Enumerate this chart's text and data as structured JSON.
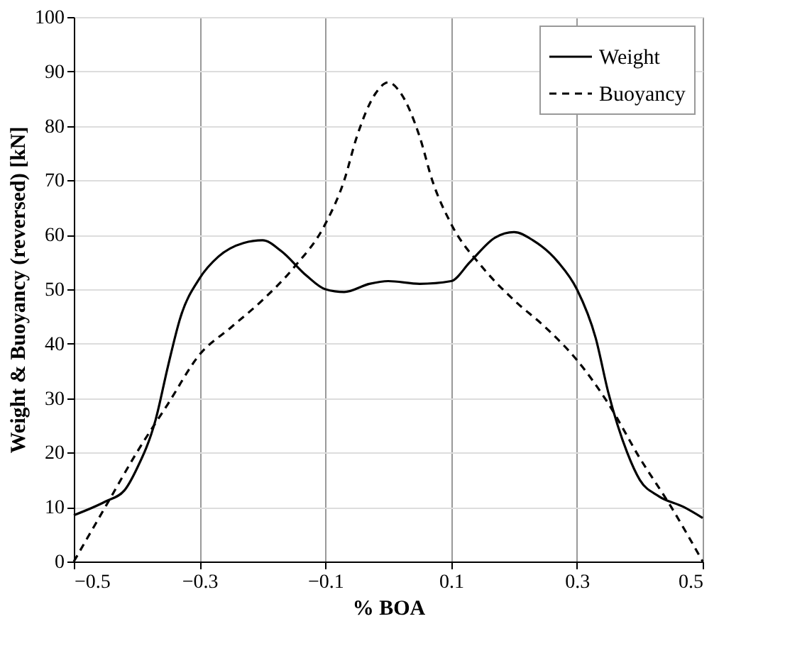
{
  "chart_data": {
    "type": "line",
    "xlabel": "% BOA",
    "ylabel": "Weight & Buoyancy (reversed) [kN]",
    "xlim": [
      -0.5,
      0.5
    ],
    "xticks": [
      -0.5,
      -0.3,
      -0.1,
      0.1,
      0.3,
      0.5
    ],
    "ylim": [
      0,
      100
    ],
    "yticks": [
      0,
      10,
      20,
      30,
      40,
      50,
      60,
      70,
      80,
      90,
      100
    ],
    "grid": true,
    "legend": "top right",
    "series": [
      {
        "name": "Weight",
        "color": "#000000",
        "line_style": "solid",
        "x": [
          -0.5,
          -0.45,
          -0.42,
          -0.4,
          -0.37,
          -0.35,
          -0.33,
          -0.3,
          -0.27,
          -0.23,
          -0.2,
          -0.17,
          -0.13,
          -0.1,
          -0.07,
          -0.03,
          0,
          0.05,
          0.1,
          0.13,
          0.17,
          0.2,
          0.23,
          0.27,
          0.3,
          0.33,
          0.35,
          0.38,
          0.4,
          0.43,
          0.47,
          0.5
        ],
        "values": [
          8.5,
          11,
          13,
          17,
          26,
          36,
          45,
          52,
          56,
          58.5,
          59,
          57,
          52.5,
          50,
          49.5,
          51,
          51.5,
          51,
          51.5,
          55,
          59.5,
          60.5,
          59,
          55,
          50,
          41,
          31,
          20,
          15,
          12,
          10,
          8
        ]
      },
      {
        "name": "Buoyancy",
        "color": "#000000",
        "line_style": "dashed",
        "x": [
          -0.5,
          -0.45,
          -0.4,
          -0.35,
          -0.3,
          -0.25,
          -0.2,
          -0.15,
          -0.1,
          -0.07,
          -0.05,
          -0.02,
          0,
          0.02,
          0.05,
          0.07,
          0.1,
          0.15,
          0.2,
          0.25,
          0.3,
          0.35,
          0.4,
          0.45,
          0.5
        ],
        "values": [
          0,
          10,
          20,
          29,
          38,
          43,
          48,
          54,
          62,
          70,
          78,
          86,
          88,
          86,
          78,
          70,
          62,
          54,
          48,
          43,
          37,
          29,
          19,
          10,
          0
        ]
      }
    ]
  }
}
